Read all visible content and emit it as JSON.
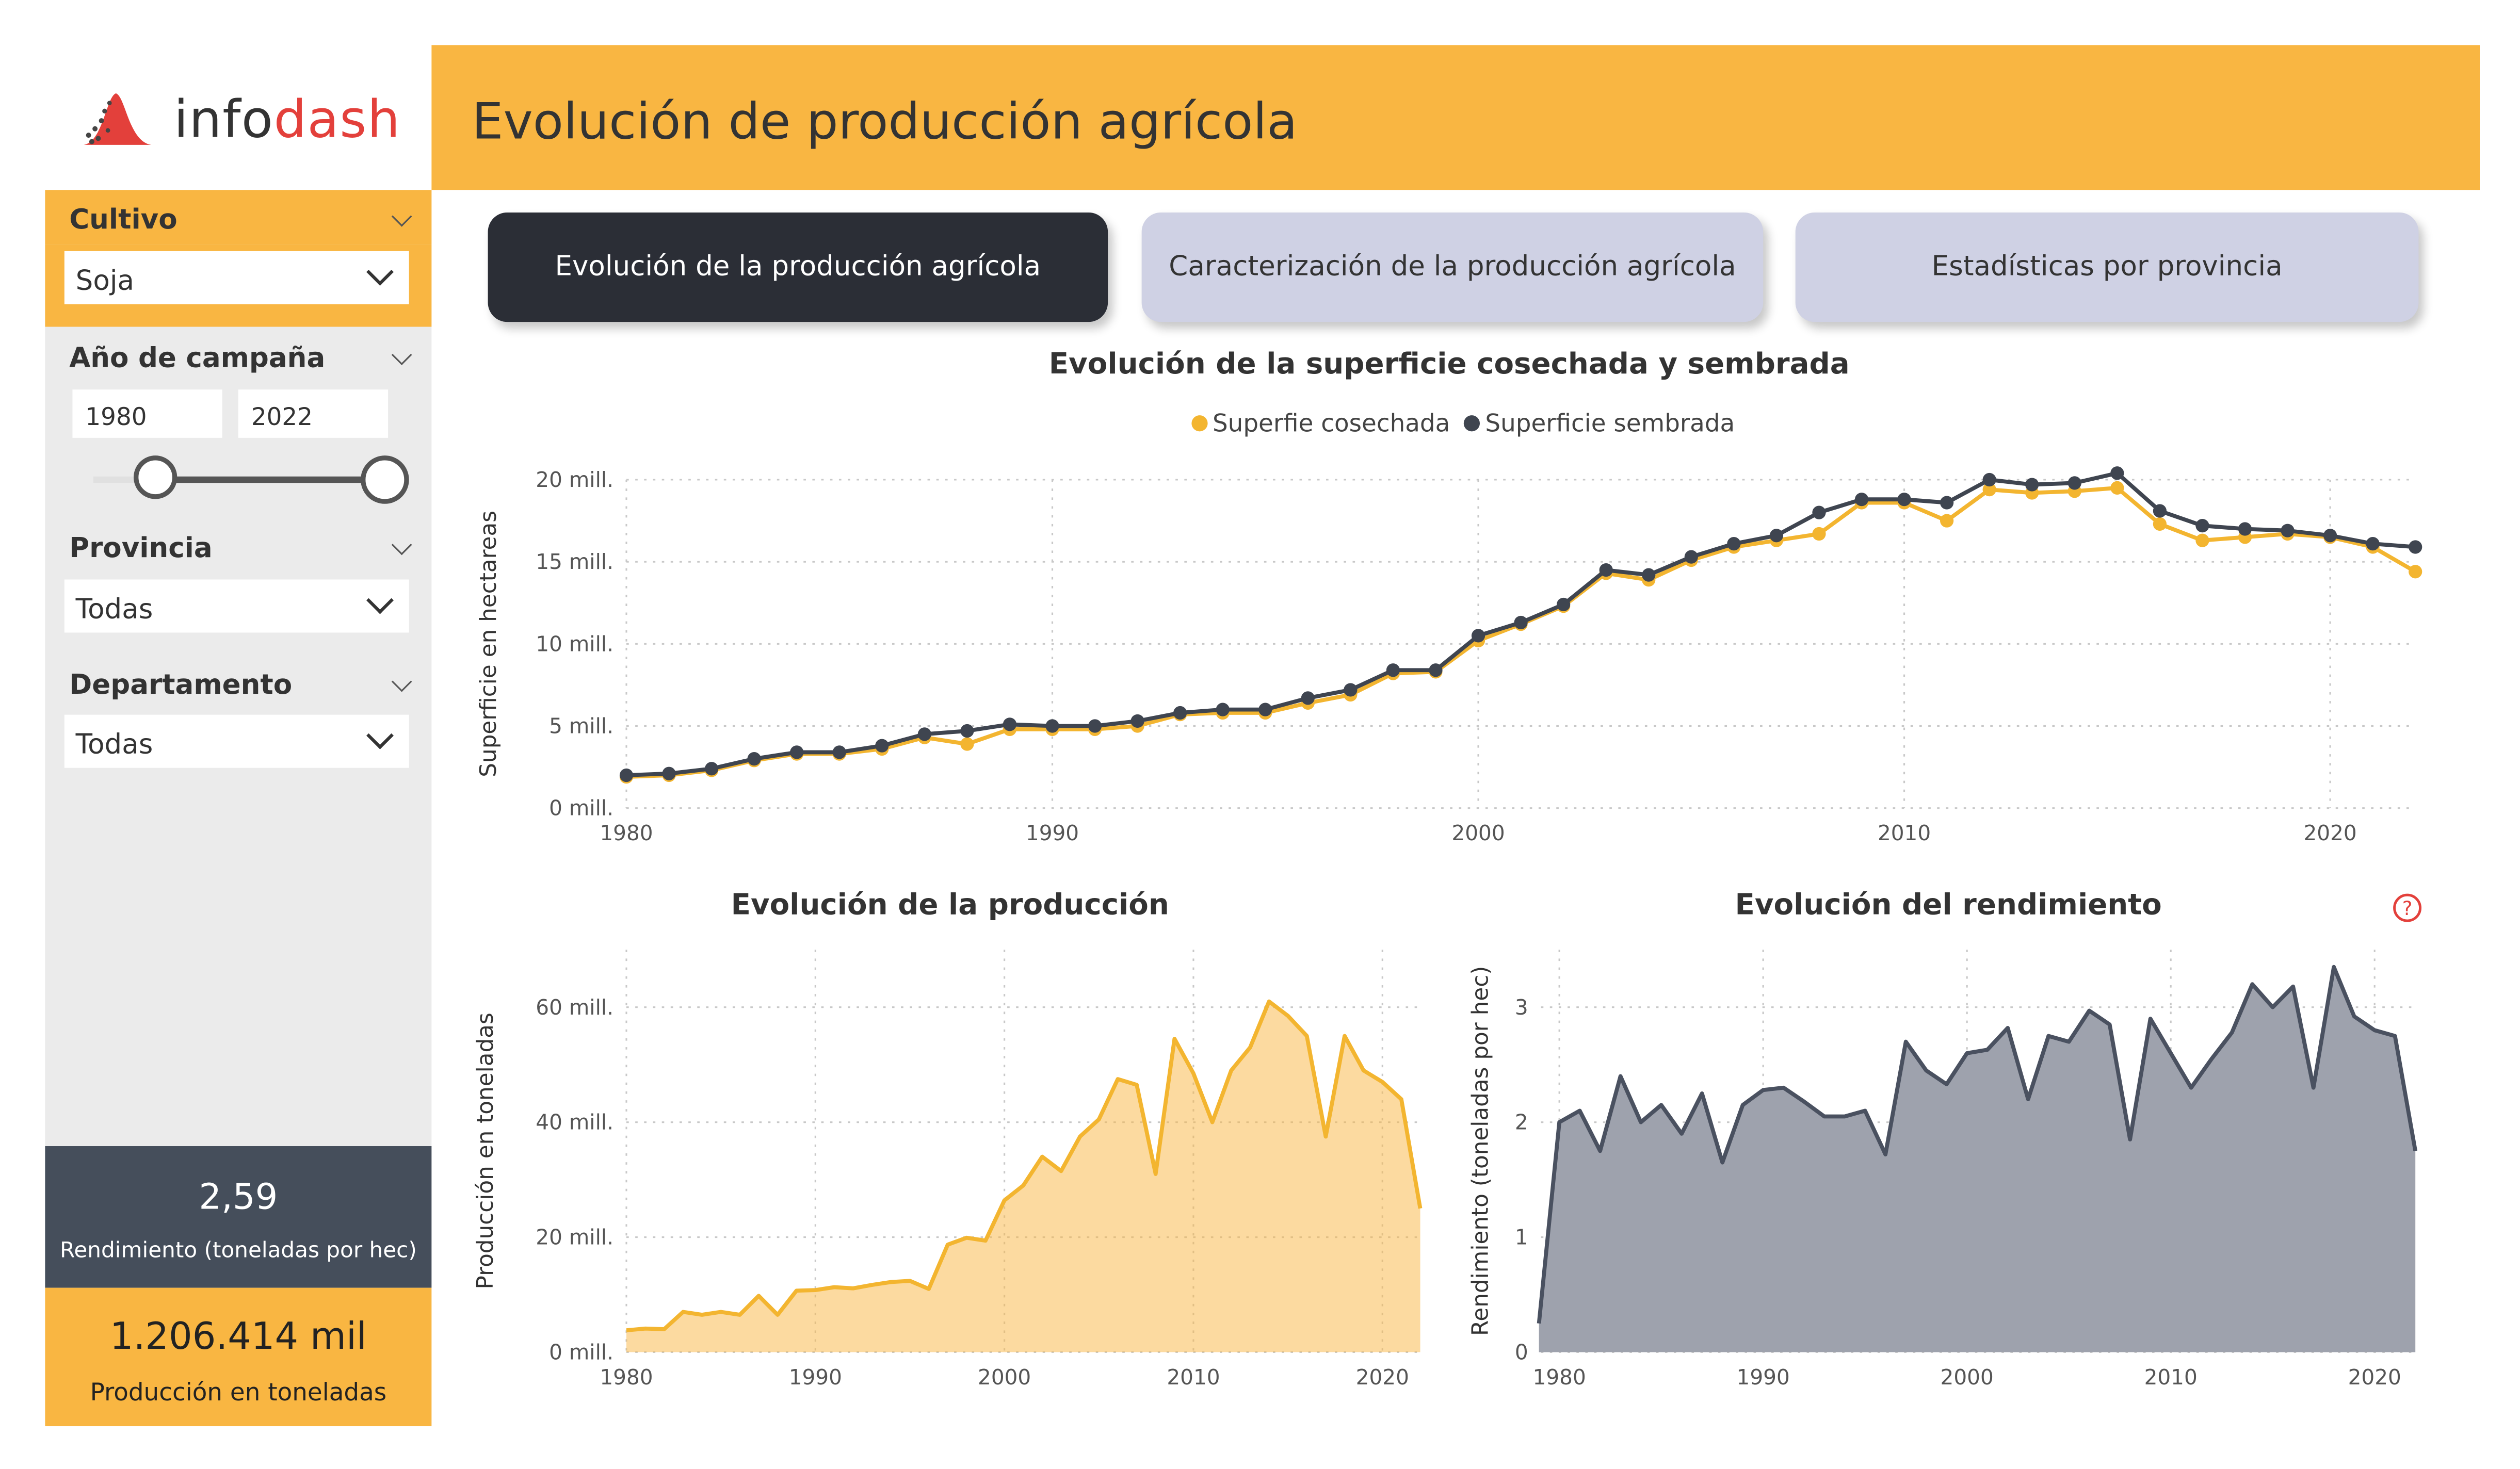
{
  "brand": {
    "part1": "info",
    "part2": "dash"
  },
  "header": {
    "title": "Evolución de producción agrícola"
  },
  "filters": {
    "cultivo": {
      "label": "Cultivo",
      "value": "Soja"
    },
    "anio": {
      "label": "Año de campaña",
      "from": "1980",
      "to": "2022"
    },
    "provincia": {
      "label": "Provincia",
      "value": "Todas"
    },
    "departamento": {
      "label": "Departamento",
      "value": "Todas"
    }
  },
  "kpis": {
    "rendimiento": {
      "value": "2,59",
      "label": "Rendimiento (toneladas por hec)"
    },
    "produccion": {
      "value": "1.206.414 mil",
      "label": "Producción en toneladas"
    }
  },
  "tabs": [
    {
      "label": "Evolución de la producción agrícola",
      "active": true
    },
    {
      "label": "Caracterización de la producción agrícola",
      "active": false
    },
    {
      "label": "Estadísticas por provincia",
      "active": false
    }
  ],
  "colors": {
    "accent": "#f9b642",
    "dark": "#454e5b",
    "line_yellow": "#f3b530",
    "line_dark": "#3f4550"
  },
  "icons": {
    "help": "question-circle-icon"
  },
  "chart_data": [
    {
      "type": "line",
      "title": "Evolución de la superficie cosechada y sembrada",
      "ylabel": "Superficie en hectareas",
      "legend_position": "top-center",
      "yticks": [
        "0 mill.",
        "5 mill.",
        "10 mill.",
        "15 mill.",
        "20 mill."
      ],
      "xticks": [
        "1980",
        "1990",
        "2000",
        "2010",
        "2020"
      ],
      "ylim": [
        0,
        20
      ],
      "xlim": [
        1980,
        2022
      ],
      "x": [
        1980,
        1981,
        1982,
        1983,
        1984,
        1985,
        1986,
        1987,
        1988,
        1989,
        1990,
        1991,
        1992,
        1993,
        1994,
        1995,
        1996,
        1997,
        1998,
        1999,
        2000,
        2001,
        2002,
        2003,
        2004,
        2005,
        2006,
        2007,
        2008,
        2009,
        2010,
        2011,
        2012,
        2013,
        2014,
        2015,
        2016,
        2017,
        2018,
        2019,
        2020,
        2021,
        2022
      ],
      "series": [
        {
          "name": "Superfie cosechada",
          "color": "#f3b530",
          "values": [
            1.9,
            2.0,
            2.3,
            2.9,
            3.3,
            3.3,
            3.6,
            4.3,
            3.9,
            4.8,
            4.8,
            4.8,
            5.0,
            5.7,
            5.8,
            5.8,
            6.4,
            6.9,
            8.2,
            8.3,
            10.2,
            11.2,
            12.3,
            14.3,
            13.9,
            15.1,
            15.9,
            16.3,
            16.7,
            18.6,
            18.6,
            17.5,
            19.4,
            19.2,
            19.3,
            19.5,
            17.3,
            16.3,
            16.5,
            16.7,
            16.5,
            15.9,
            14.4
          ]
        },
        {
          "name": "Superficie sembrada",
          "color": "#3f4550",
          "values": [
            2.0,
            2.1,
            2.4,
            3.0,
            3.4,
            3.4,
            3.8,
            4.5,
            4.7,
            5.1,
            5.0,
            5.0,
            5.3,
            5.8,
            6.0,
            6.0,
            6.7,
            7.2,
            8.4,
            8.4,
            10.5,
            11.3,
            12.4,
            14.5,
            14.2,
            15.3,
            16.1,
            16.6,
            18.0,
            18.8,
            18.8,
            18.6,
            20.0,
            19.7,
            19.8,
            20.4,
            18.1,
            17.2,
            17.0,
            16.9,
            16.6,
            16.1,
            15.9
          ]
        }
      ]
    },
    {
      "type": "area",
      "title": "Evolución de la producción",
      "ylabel": "Producción en toneladas",
      "yticks": [
        "0 mill.",
        "20 mill.",
        "40 mill.",
        "60 mill."
      ],
      "xticks": [
        "1980",
        "1990",
        "2000",
        "2010",
        "2020"
      ],
      "ylim": [
        0,
        70
      ],
      "xlim": [
        1980,
        2022
      ],
      "x": [
        1980,
        1981,
        1982,
        1983,
        1984,
        1985,
        1986,
        1987,
        1988,
        1989,
        1990,
        1991,
        1992,
        1993,
        1994,
        1995,
        1996,
        1997,
        1998,
        1999,
        2000,
        2001,
        2002,
        2003,
        2004,
        2005,
        2006,
        2007,
        2008,
        2009,
        2010,
        2011,
        2012,
        2013,
        2014,
        2015,
        2016,
        2017,
        2018,
        2019,
        2020,
        2021,
        2022
      ],
      "series": [
        {
          "name": "",
          "color": "#f3b530",
          "values": [
            3.8,
            4.1,
            4.0,
            7.0,
            6.5,
            7.0,
            6.5,
            9.8,
            6.5,
            10.7,
            10.8,
            11.3,
            11.1,
            11.7,
            12.2,
            12.4,
            11.0,
            18.7,
            19.9,
            19.4,
            26.4,
            29.0,
            34.0,
            31.5,
            37.5,
            40.5,
            47.5,
            46.5,
            31.0,
            54.5,
            48.5,
            40.0,
            49.0,
            53.0,
            61.0,
            58.5,
            55.0,
            37.5,
            55.0,
            49.0,
            47.0,
            44.0,
            25.0
          ]
        }
      ]
    },
    {
      "type": "area",
      "title": "Evolución del rendimiento",
      "ylabel": "Rendimiento (toneladas por hec)",
      "yticks": [
        "0",
        "1",
        "2",
        "3"
      ],
      "xticks": [
        "1980",
        "1990",
        "2000",
        "2010",
        "2020"
      ],
      "ylim": [
        0,
        3.5
      ],
      "xlim": [
        1979.1,
        2022
      ],
      "x": [
        1979,
        1980,
        1981,
        1982,
        1983,
        1984,
        1985,
        1986,
        1987,
        1988,
        1989,
        1990,
        1991,
        1992,
        1993,
        1994,
        1995,
        1996,
        1997,
        1998,
        1999,
        2000,
        2001,
        2002,
        2003,
        2004,
        2005,
        2006,
        2007,
        2008,
        2009,
        2010,
        2011,
        2012,
        2013,
        2014,
        2015,
        2016,
        2017,
        2018,
        2019,
        2020,
        2021,
        2022
      ],
      "series": [
        {
          "name": "",
          "color": "#4a5160",
          "values": [
            0.25,
            2.0,
            2.1,
            1.75,
            2.4,
            2.0,
            2.15,
            1.9,
            2.25,
            1.65,
            2.15,
            2.28,
            2.3,
            2.18,
            2.05,
            2.05,
            2.1,
            1.72,
            2.7,
            2.45,
            2.33,
            2.6,
            2.63,
            2.82,
            2.2,
            2.75,
            2.7,
            2.97,
            2.85,
            1.85,
            2.9,
            2.6,
            2.3,
            2.55,
            2.78,
            3.2,
            3.0,
            3.18,
            2.3,
            3.35,
            2.92,
            2.8,
            2.75,
            1.75
          ]
        }
      ]
    }
  ]
}
